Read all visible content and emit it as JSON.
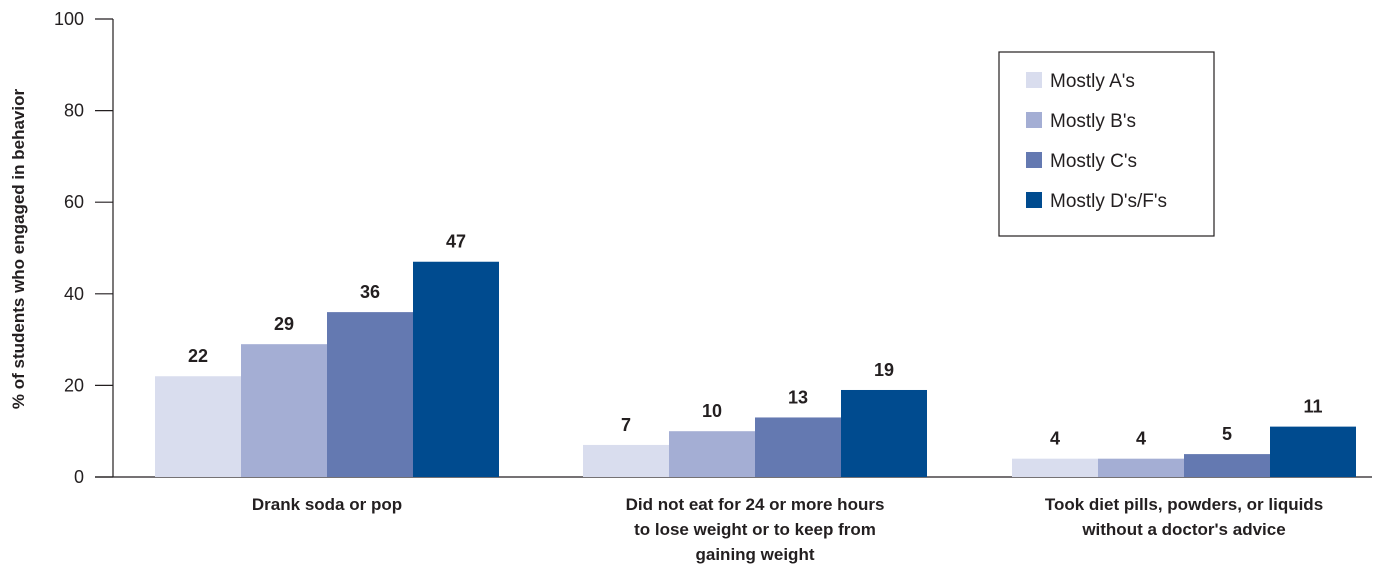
{
  "chart_data": {
    "type": "bar",
    "title": "",
    "xlabel": "",
    "ylabel": "%  of students who engaged in behavior",
    "ylim": [
      0,
      100
    ],
    "yticks": [
      0,
      20,
      40,
      60,
      80,
      100
    ],
    "grid": false,
    "legend_position": "top-right",
    "categories": [
      [
        "Drank soda or pop"
      ],
      [
        "Did not eat for 24 or more hours",
        "to lose weight or to keep from",
        "gaining weight"
      ],
      [
        "Took diet pills, powders, or liquids",
        "without a doctor's advice"
      ]
    ],
    "series": [
      {
        "name": "Mostly A's",
        "color": "#d9ddee",
        "values": [
          22,
          7,
          4
        ]
      },
      {
        "name": "Mostly B's",
        "color": "#a4aed4",
        "values": [
          29,
          10,
          4
        ]
      },
      {
        "name": "Mostly C's",
        "color": "#6479b1",
        "values": [
          36,
          13,
          5
        ]
      },
      {
        "name": "Mostly D's/F's",
        "color": "#004b8f",
        "values": [
          47,
          19,
          11
        ]
      }
    ]
  }
}
